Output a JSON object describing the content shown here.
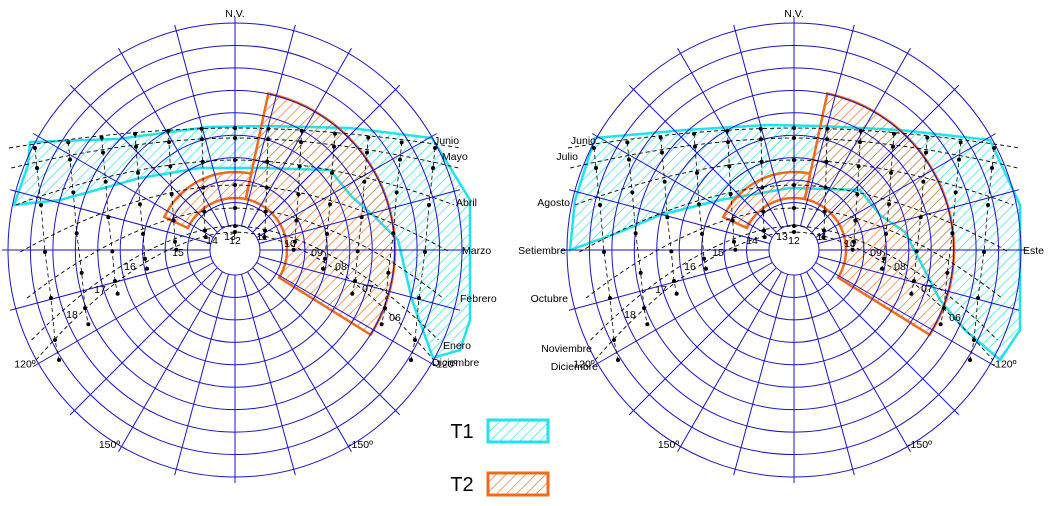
{
  "diagrams": [
    {
      "north_label": "N.V.",
      "azimuth_labels": [
        {
          "text": "-150º",
          "az": -150
        },
        {
          "text": "150º",
          "az": 150
        },
        {
          "text": "-120º",
          "az": -120
        },
        {
          "text": "120º",
          "az": 120
        }
      ],
      "month_labels": [
        {
          "text": "Junio",
          "side": "right"
        },
        {
          "text": "Mayo",
          "side": "right"
        },
        {
          "text": "Abril",
          "side": "right"
        },
        {
          "text": "Marzo",
          "side": "right"
        },
        {
          "text": "Febrero",
          "side": "right"
        },
        {
          "text": "Enero",
          "side": "right"
        },
        {
          "text": "Diciembre",
          "side": "right"
        }
      ],
      "hour_labels": [
        "18",
        "17",
        "16",
        "15",
        "14",
        "13",
        "12",
        "11",
        "10",
        "09",
        "08",
        "07",
        "06"
      ]
    },
    {
      "north_label": "N.V.",
      "azimuth_labels": [
        {
          "text": "-150º",
          "az": -150
        },
        {
          "text": "150º",
          "az": 150
        },
        {
          "text": "-120º",
          "az": -120
        },
        {
          "text": "120º",
          "az": 120
        }
      ],
      "month_labels": [
        {
          "text": "Junio",
          "side": "left"
        },
        {
          "text": "Julio",
          "side": "left"
        },
        {
          "text": "Agosto",
          "side": "left"
        },
        {
          "text": "Setiembre",
          "side": "left"
        },
        {
          "text": "Octubre",
          "side": "left"
        },
        {
          "text": "Noviembre",
          "side": "left"
        },
        {
          "text": "Diciembre",
          "side": "left"
        }
      ],
      "east_label": "Este",
      "hour_labels": [
        "18",
        "17",
        "16",
        "15",
        "14",
        "13",
        "12",
        "11",
        "10",
        "09",
        "08",
        "07",
        "06"
      ]
    }
  ],
  "legend": [
    {
      "label": "T1",
      "color": "#1fe3ef"
    },
    {
      "label": "T2",
      "color": "#f26a1b"
    }
  ],
  "colors": {
    "grid": "#1a14c8",
    "sunpath": "#000000",
    "t1": "#1fe3ef",
    "t2": "#f26a1b"
  }
}
